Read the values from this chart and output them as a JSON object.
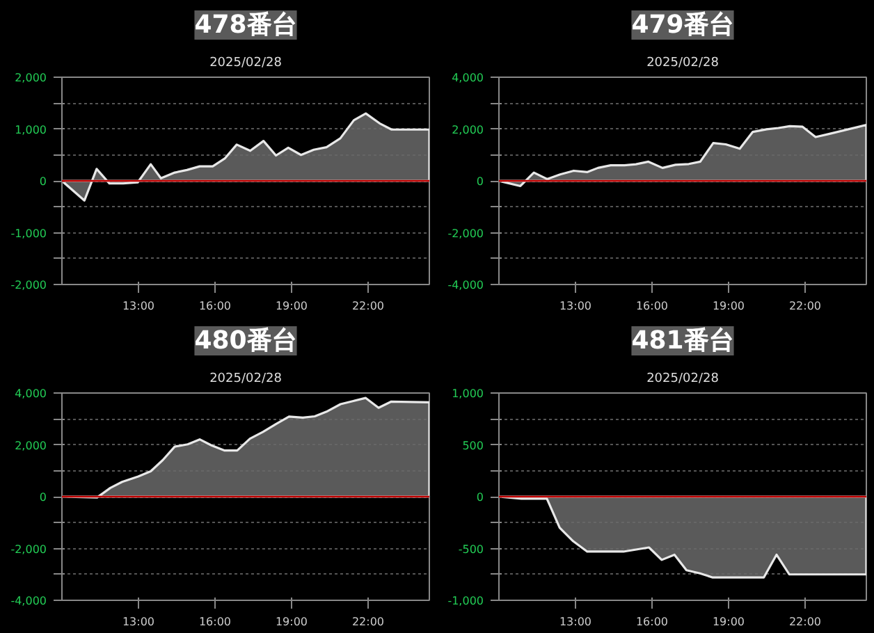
{
  "chart_data": [
    {
      "type": "area",
      "title": "478番台",
      "subtitle": "2025/02/28",
      "xlim": [
        10,
        24.4
      ],
      "xticks": [
        {
          "value": 13,
          "label": "13:00"
        },
        {
          "value": 16,
          "label": "16:00"
        },
        {
          "value": 19,
          "label": "19:00"
        },
        {
          "value": 22,
          "label": "22:00"
        }
      ],
      "ylim": [
        -2000,
        2000
      ],
      "yticks": [
        {
          "value": -2000,
          "label": "-2,000"
        },
        {
          "value": -1500,
          "label": null
        },
        {
          "value": -1000,
          "label": "-1,000"
        },
        {
          "value": -500,
          "label": null
        },
        {
          "value": 0,
          "label": "0"
        },
        {
          "value": 500,
          "label": null
        },
        {
          "value": 1000,
          "label": "1,000"
        },
        {
          "value": 1500,
          "label": null
        },
        {
          "value": 2000,
          "label": "2,000"
        }
      ],
      "grid": "y",
      "ref_lines": [
        {
          "axis": "y",
          "value": 0,
          "color": "#c00000"
        }
      ],
      "series": [
        {
          "color": "#e8e8e8",
          "x": [
            10,
            10.88,
            11.36,
            11.86,
            12.4,
            12.97,
            13.48,
            13.88,
            14.42,
            14.9,
            15.4,
            15.91,
            16.38,
            16.85,
            17.38,
            17.9,
            18.39,
            18.87,
            19.37,
            19.87,
            20.37,
            20.91,
            21.44,
            21.91,
            22.45,
            22.92,
            24.4
          ],
          "values": [
            0,
            -380,
            230,
            -50,
            -50,
            -30,
            320,
            50,
            160,
            210,
            280,
            280,
            430,
            700,
            580,
            770,
            490,
            640,
            500,
            600,
            650,
            820,
            1170,
            1300,
            1110,
            990,
            990
          ]
        }
      ]
    },
    {
      "type": "area",
      "title": "479番台",
      "subtitle": "2025/02/28",
      "xlim": [
        10,
        24.4
      ],
      "xticks": [
        {
          "value": 13,
          "label": "13:00"
        },
        {
          "value": 16,
          "label": "16:00"
        },
        {
          "value": 19,
          "label": "19:00"
        },
        {
          "value": 22,
          "label": "22:00"
        }
      ],
      "ylim": [
        -4000,
        4000
      ],
      "yticks": [
        {
          "value": -4000,
          "label": "-4,000"
        },
        {
          "value": -3000,
          "label": null
        },
        {
          "value": -2000,
          "label": "-2,000"
        },
        {
          "value": -1000,
          "label": null
        },
        {
          "value": 0,
          "label": "0"
        },
        {
          "value": 1000,
          "label": null
        },
        {
          "value": 2000,
          "label": "2,000"
        },
        {
          "value": 3000,
          "label": null
        },
        {
          "value": 4000,
          "label": "4,000"
        }
      ],
      "grid": "y",
      "ref_lines": [
        {
          "axis": "y",
          "value": 0,
          "color": "#c00000"
        }
      ],
      "series": [
        {
          "color": "#e8e8e8",
          "x": [
            10,
            10.84,
            11.37,
            11.89,
            12.4,
            12.93,
            13.47,
            13.88,
            14.38,
            14.92,
            15.37,
            15.86,
            16.41,
            16.92,
            17.44,
            17.89,
            18.4,
            18.89,
            19.44,
            19.95,
            20.49,
            20.95,
            21.4,
            21.9,
            22.41,
            22.93,
            24.4
          ],
          "values": [
            0,
            -200,
            320,
            70,
            250,
            390,
            340,
            500,
            600,
            600,
            640,
            740,
            500,
            620,
            650,
            740,
            1460,
            1410,
            1240,
            1890,
            1990,
            2040,
            2110,
            2090,
            1690,
            1810,
            2160
          ]
        }
      ]
    },
    {
      "type": "area",
      "title": "480番台",
      "subtitle": "2025/02/28",
      "xlim": [
        10,
        24.4
      ],
      "xticks": [
        {
          "value": 13,
          "label": "13:00"
        },
        {
          "value": 16,
          "label": "16:00"
        },
        {
          "value": 19,
          "label": "19:00"
        },
        {
          "value": 22,
          "label": "22:00"
        }
      ],
      "ylim": [
        -4000,
        4000
      ],
      "yticks": [
        {
          "value": -4000,
          "label": "-4,000"
        },
        {
          "value": -3000,
          "label": null
        },
        {
          "value": -2000,
          "label": "-2,000"
        },
        {
          "value": -1000,
          "label": null
        },
        {
          "value": 0,
          "label": "0"
        },
        {
          "value": 1000,
          "label": null
        },
        {
          "value": 2000,
          "label": "2,000"
        },
        {
          "value": 3000,
          "label": null
        },
        {
          "value": 4000,
          "label": "4,000"
        }
      ],
      "grid": "y",
      "ref_lines": [
        {
          "axis": "y",
          "value": 0,
          "color": "#c00000"
        }
      ],
      "series": [
        {
          "color": "#e8e8e8",
          "x": [
            10,
            11.38,
            11.9,
            12.36,
            12.99,
            13.48,
            13.95,
            14.42,
            14.93,
            15.4,
            15.86,
            16.38,
            16.87,
            17.37,
            17.88,
            18.4,
            18.9,
            19.44,
            19.91,
            20.37,
            20.92,
            21.42,
            21.9,
            22.41,
            22.91,
            24.4
          ],
          "values": [
            0,
            -30,
            340,
            570,
            780,
            980,
            1410,
            1930,
            2020,
            2210,
            1980,
            1780,
            1780,
            2240,
            2500,
            2810,
            3090,
            3050,
            3100,
            3280,
            3570,
            3690,
            3810,
            3430,
            3670,
            3640
          ]
        }
      ]
    },
    {
      "type": "area",
      "title": "481番台",
      "subtitle": "2025/02/28",
      "xlim": [
        10,
        24.4
      ],
      "xticks": [
        {
          "value": 13,
          "label": "13:00"
        },
        {
          "value": 16,
          "label": "16:00"
        },
        {
          "value": 19,
          "label": "19:00"
        },
        {
          "value": 22,
          "label": "22:00"
        }
      ],
      "ylim": [
        -1000,
        1000
      ],
      "yticks": [
        {
          "value": -1000,
          "label": "-1,000"
        },
        {
          "value": -750,
          "label": null
        },
        {
          "value": -500,
          "label": "-500"
        },
        {
          "value": -250,
          "label": null
        },
        {
          "value": 0,
          "label": "0"
        },
        {
          "value": 250,
          "label": null
        },
        {
          "value": 500,
          "label": "500"
        },
        {
          "value": 750,
          "label": null
        },
        {
          "value": 1000,
          "label": "1,000"
        }
      ],
      "grid": "y",
      "ref_lines": [
        {
          "axis": "y",
          "value": 0,
          "color": "#c00000"
        }
      ],
      "series": [
        {
          "color": "#e8e8e8",
          "x": [
            10,
            10.88,
            11.88,
            12.38,
            12.91,
            13.46,
            14.88,
            15.38,
            15.88,
            16.38,
            16.88,
            17.35,
            17.88,
            18.38,
            18.95,
            20.38,
            20.88,
            21.38,
            24.4
          ],
          "values": [
            0,
            -20,
            -20,
            -300,
            -430,
            -530,
            -530,
            -510,
            -490,
            -610,
            -560,
            -710,
            -740,
            -780,
            -780,
            -780,
            -560,
            -750,
            -750
          ]
        }
      ]
    }
  ]
}
